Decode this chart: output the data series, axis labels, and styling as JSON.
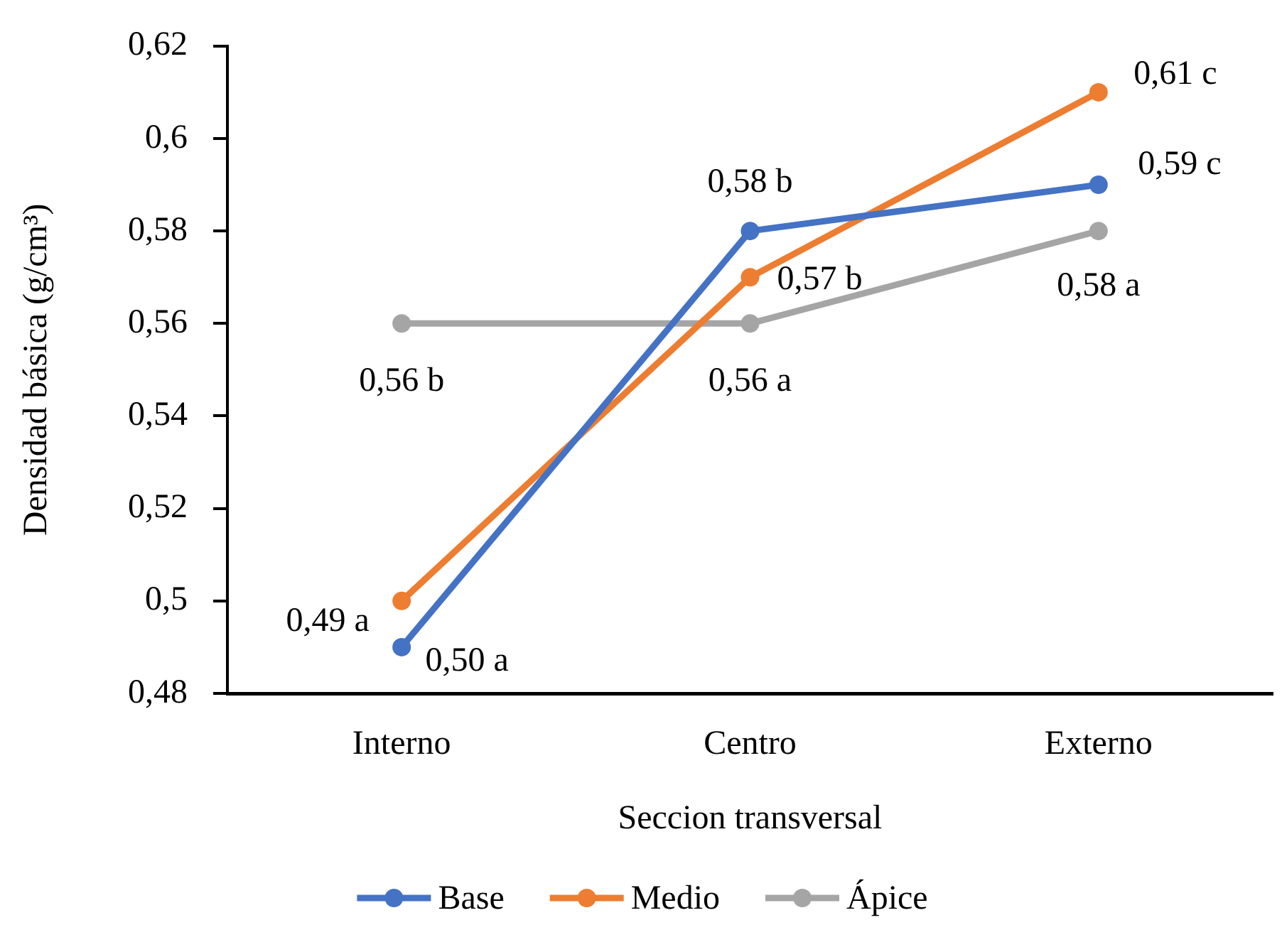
{
  "chart_data": {
    "type": "line",
    "xlabel": "Seccion transversal",
    "ylabel": "Densidad básica (g/cm³)",
    "categories": [
      "Interno",
      "Centro",
      "Externo"
    ],
    "series": [
      {
        "name": "Base",
        "color": "#4472c4",
        "values": [
          0.49,
          0.58,
          0.59
        ],
        "value_labels": [
          "0,49 a",
          "0,58 b",
          "0,59 c"
        ]
      },
      {
        "name": "Medio",
        "color": "#ed7d31",
        "values": [
          0.5,
          0.57,
          0.61
        ],
        "value_labels": [
          "0,50 a",
          "0,57 b",
          "0,61 c"
        ]
      },
      {
        "name": "Ápice",
        "color": "#a5a5a5",
        "values": [
          0.56,
          0.56,
          0.58
        ],
        "value_labels": [
          "0,56 b",
          "0,56 a",
          "0,58 a"
        ]
      }
    ],
    "ylim": [
      0.48,
      0.62
    ],
    "yticks": [
      {
        "value": 0.48,
        "label": "0,48"
      },
      {
        "value": 0.5,
        "label": "0,5"
      },
      {
        "value": 0.52,
        "label": "0,52"
      },
      {
        "value": 0.54,
        "label": "0,54"
      },
      {
        "value": 0.56,
        "label": "0,56"
      },
      {
        "value": 0.58,
        "label": "0,58"
      },
      {
        "value": 0.6,
        "label": "0,6"
      },
      {
        "value": 0.62,
        "label": "0,62"
      }
    ],
    "legend": "bottom",
    "marker": "circle",
    "line_style": "solid"
  }
}
